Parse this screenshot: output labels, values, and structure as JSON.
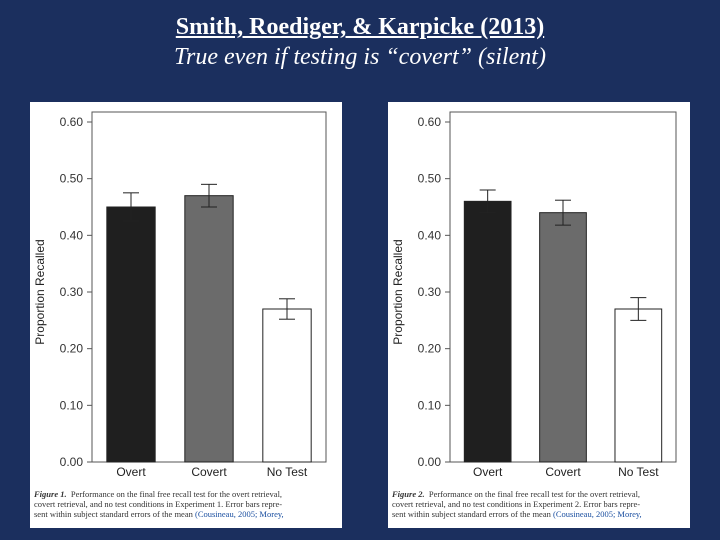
{
  "header": {
    "line1": "Smith, Roediger, & Karpicke (2013)",
    "line2": "True even if testing is “covert” (silent)"
  },
  "colors": {
    "background": "#1b2f5e",
    "overt": "#1f1f1f",
    "covert": "#6b6b6b",
    "notest": "#ffffff"
  },
  "chart_data": [
    {
      "type": "bar",
      "ylabel": "Proportion Recalled",
      "xlabel": "",
      "ylim": [
        0,
        0.6
      ],
      "yticks": [
        "0.00",
        "0.10",
        "0.20",
        "0.30",
        "0.40",
        "0.50",
        "0.60"
      ],
      "categories": [
        "Overt",
        "Covert",
        "No Test"
      ],
      "values": [
        0.45,
        0.47,
        0.27
      ],
      "errors": [
        0.025,
        0.02,
        0.018
      ],
      "caption": {
        "label": "Figure 1.",
        "lines": [
          "Performance on the final free recall test for the overt retrieval,",
          "covert retrieval, and no test conditions in Experiment 1. Error bars repre-",
          "sent within subject standard errors of the mean",
          "(Cousineau, 2005; Morey,"
        ]
      }
    },
    {
      "type": "bar",
      "ylabel": "Proportion Recalled",
      "xlabel": "",
      "ylim": [
        0,
        0.6
      ],
      "yticks": [
        "0.00",
        "0.10",
        "0.20",
        "0.30",
        "0.40",
        "0.50",
        "0.60"
      ],
      "categories": [
        "Overt",
        "Covert",
        "No Test"
      ],
      "values": [
        0.46,
        0.44,
        0.27
      ],
      "errors": [
        0.02,
        0.022,
        0.02
      ],
      "caption": {
        "label": "Figure 2.",
        "lines": [
          "Performance on the final free recall test for the overt retrieval,",
          "covert retrieval, and no test conditions in Experiment 2. Error bars repre-",
          "sent within subject standard errors of the mean",
          "(Cousineau, 2005; Morey,"
        ]
      }
    }
  ]
}
